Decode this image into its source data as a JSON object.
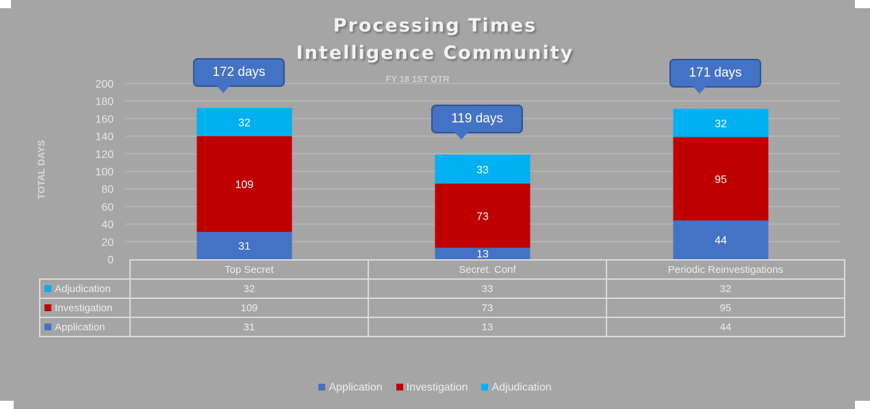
{
  "chart_data": {
    "type": "bar",
    "stacked": true,
    "title": [
      "Processing Times",
      "Intelligence Community"
    ],
    "subtitle": "FY 18 1ST QTR",
    "ylabel": "TOTAL DAYS",
    "xlabel": "",
    "ylim": [
      0,
      200
    ],
    "yticks": [
      0,
      20,
      40,
      60,
      80,
      100,
      120,
      140,
      160,
      180,
      200
    ],
    "grid": true,
    "categories": [
      "Top Secret",
      "Secret. Conf",
      "Periodic Reinvestigations"
    ],
    "series": [
      {
        "name": "Application",
        "color": "#4472c4",
        "values": [
          31,
          13,
          44
        ]
      },
      {
        "name": "Investigation",
        "color": "#c00000",
        "values": [
          109,
          73,
          95
        ]
      },
      {
        "name": "Adjudication",
        "color": "#00b0f0",
        "values": [
          32,
          33,
          32
        ]
      }
    ],
    "callouts": [
      "172 days",
      "119 days",
      "171 days"
    ],
    "legend_position": "bottom",
    "data_table": true
  }
}
